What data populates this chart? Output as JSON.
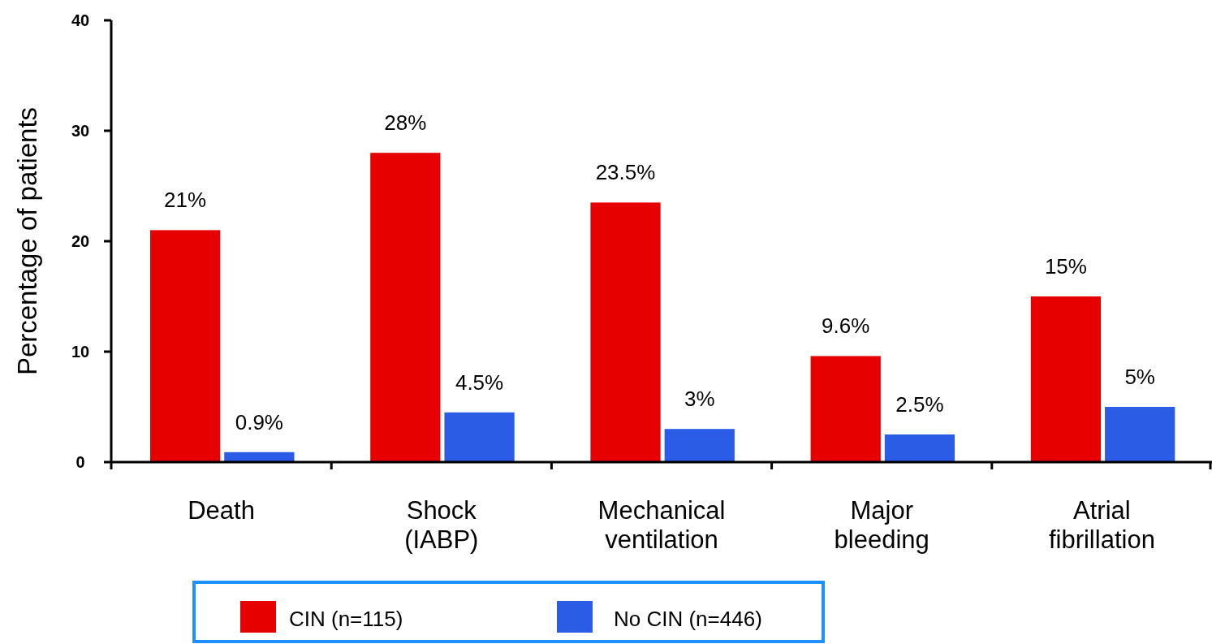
{
  "chart_data": {
    "type": "bar",
    "ylabel": "Percentage of patients",
    "categories": [
      "Death",
      "Shock\n(IABP)",
      "Mechanical\nventilation",
      "Major\nbleeding",
      "Atrial\nfibrillation"
    ],
    "series": [
      {
        "name": "CIN (n=115)",
        "color": "#e60000",
        "values": [
          21,
          28,
          23.5,
          9.6,
          15
        ],
        "value_labels": [
          "21%",
          "28%",
          "23.5%",
          "9.6%",
          "15%"
        ]
      },
      {
        "name": "No CIN (n=446)",
        "color": "#2b5ce6",
        "values": [
          0.9,
          4.5,
          3,
          2.5,
          5
        ],
        "value_labels": [
          "0.9%",
          "4.5%",
          "3%",
          "2.5%",
          "5%"
        ]
      }
    ],
    "ylim": [
      0,
      40
    ],
    "yticks": [
      0,
      10,
      20,
      30,
      40
    ],
    "grid": false,
    "legend": "bottom"
  }
}
